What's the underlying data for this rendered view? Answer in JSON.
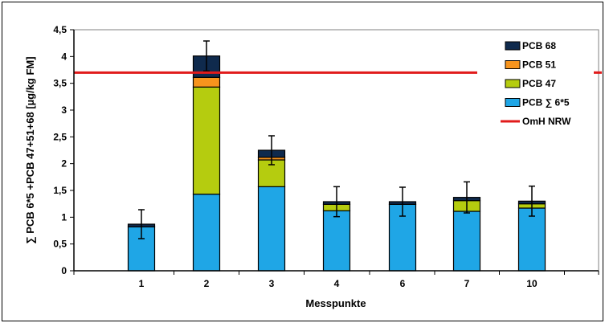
{
  "chart_data": {
    "type": "bar",
    "stacked": true,
    "categories": [
      "1",
      "2",
      "3",
      "4",
      "6",
      "7",
      "10"
    ],
    "series": [
      {
        "name": "PCB ∑ 6*5",
        "color": "#1fa6e6",
        "values": [
          0.82,
          1.43,
          1.57,
          1.12,
          1.24,
          1.11,
          1.17
        ]
      },
      {
        "name": "PCB 47",
        "color": "#b5cc0f",
        "values": [
          0.0,
          2.0,
          0.5,
          0.12,
          0.0,
          0.2,
          0.08
        ]
      },
      {
        "name": "PCB 51",
        "color": "#f7941d",
        "values": [
          0.0,
          0.18,
          0.05,
          0.0,
          0.0,
          0.0,
          0.0
        ]
      },
      {
        "name": "PCB 68",
        "color": "#0f2a4d",
        "values": [
          0.05,
          0.4,
          0.13,
          0.05,
          0.05,
          0.06,
          0.05
        ]
      }
    ],
    "error_bars": [
      0.27,
      0.28,
      0.27,
      0.28,
      0.27,
      0.29,
      0.28
    ],
    "reference_line": {
      "name": "OmH NRW",
      "value": 3.7,
      "color": "#e11b1b"
    },
    "ylim": [
      0,
      4.5
    ],
    "yticks": [
      "0",
      "0,5",
      "1",
      "1,5",
      "2",
      "2,5",
      "3",
      "3,5",
      "4",
      "4,5"
    ],
    "ytick_values": [
      0,
      0.5,
      1,
      1.5,
      2,
      2.5,
      3,
      3.5,
      4,
      4.5
    ],
    "xlabel": "Messpunkte",
    "ylabel": "∑ PCB 6*5 +PCB 47+51+68 [µg/kg FM]",
    "legend_position": "top-right",
    "legend_order": [
      "PCB 68",
      "PCB 51",
      "PCB 47",
      "PCB ∑ 6*5",
      "OmH NRW"
    ]
  }
}
